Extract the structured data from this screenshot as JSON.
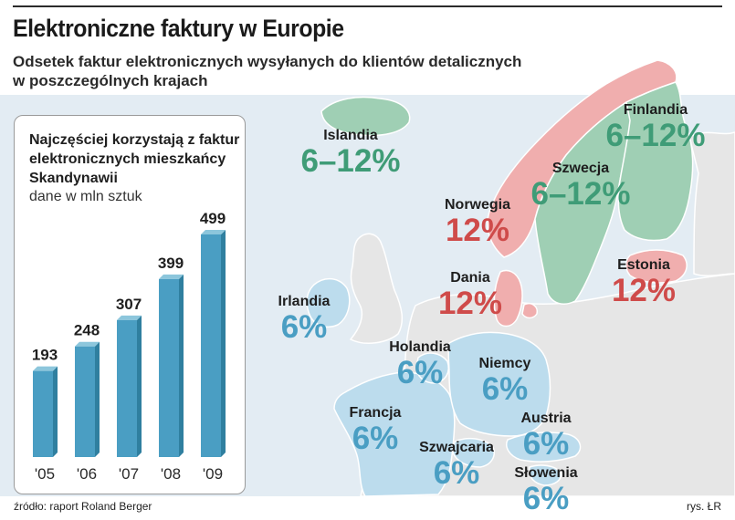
{
  "title": "Elektroniczne faktury w Europie",
  "subtitle": "Odsetek faktur elektronicznych wysyłanych do klientów detalicznych w poszczególnych krajach",
  "colors": {
    "sea": "#e3ecf3",
    "land": "#e6e6e6",
    "coast": "#ffffff",
    "green_region": "#9fcfb4",
    "red_region": "#f0aeae",
    "blue_region": "#bcdced",
    "bar": "#4a9ec3",
    "bar_side": "#2f7f9f",
    "bar_top": "#8cc6dc",
    "green_text": "#3f9c77",
    "red_text": "#cf4b4a",
    "blue_text": "#4a9ec3"
  },
  "countries": [
    {
      "name": "Islandia",
      "value": "6–12%",
      "group": "green"
    },
    {
      "name": "Finlandia",
      "value": "6–12%",
      "group": "green"
    },
    {
      "name": "Szwecja",
      "value": "6–12%",
      "group": "green"
    },
    {
      "name": "Norwegia",
      "value": "12%",
      "group": "red"
    },
    {
      "name": "Estonia",
      "value": "12%",
      "group": "red"
    },
    {
      "name": "Dania",
      "value": "12%",
      "group": "red"
    },
    {
      "name": "Irlandia",
      "value": "6%",
      "group": "blue"
    },
    {
      "name": "Holandia",
      "value": "6%",
      "group": "blue"
    },
    {
      "name": "Niemcy",
      "value": "6%",
      "group": "blue"
    },
    {
      "name": "Francja",
      "value": "6%",
      "group": "blue"
    },
    {
      "name": "Austria",
      "value": "6%",
      "group": "blue"
    },
    {
      "name": "Szwajcaria",
      "value": "6%",
      "group": "blue"
    },
    {
      "name": "Słowenia",
      "value": "6%",
      "group": "blue"
    }
  ],
  "panel": {
    "title": "Najczęściej korzystają z faktur elektronicznych mieszkańcy Skandynawii",
    "subtitle": "dane w mln sztuk"
  },
  "chart_data": {
    "type": "bar",
    "title": "Najczęściej korzystają z faktur elektronicznych mieszkańcy Skandynawii",
    "subtitle": "dane w mln sztuk",
    "categories": [
      "'05",
      "'06",
      "'07",
      "'08",
      "'09"
    ],
    "values": [
      193,
      248,
      307,
      399,
      499
    ],
    "ylim": [
      0,
      499
    ],
    "grid": false,
    "legend": "none"
  },
  "footer": {
    "source": "źródło: raport Roland Berger",
    "credit": "rys. ŁR"
  }
}
